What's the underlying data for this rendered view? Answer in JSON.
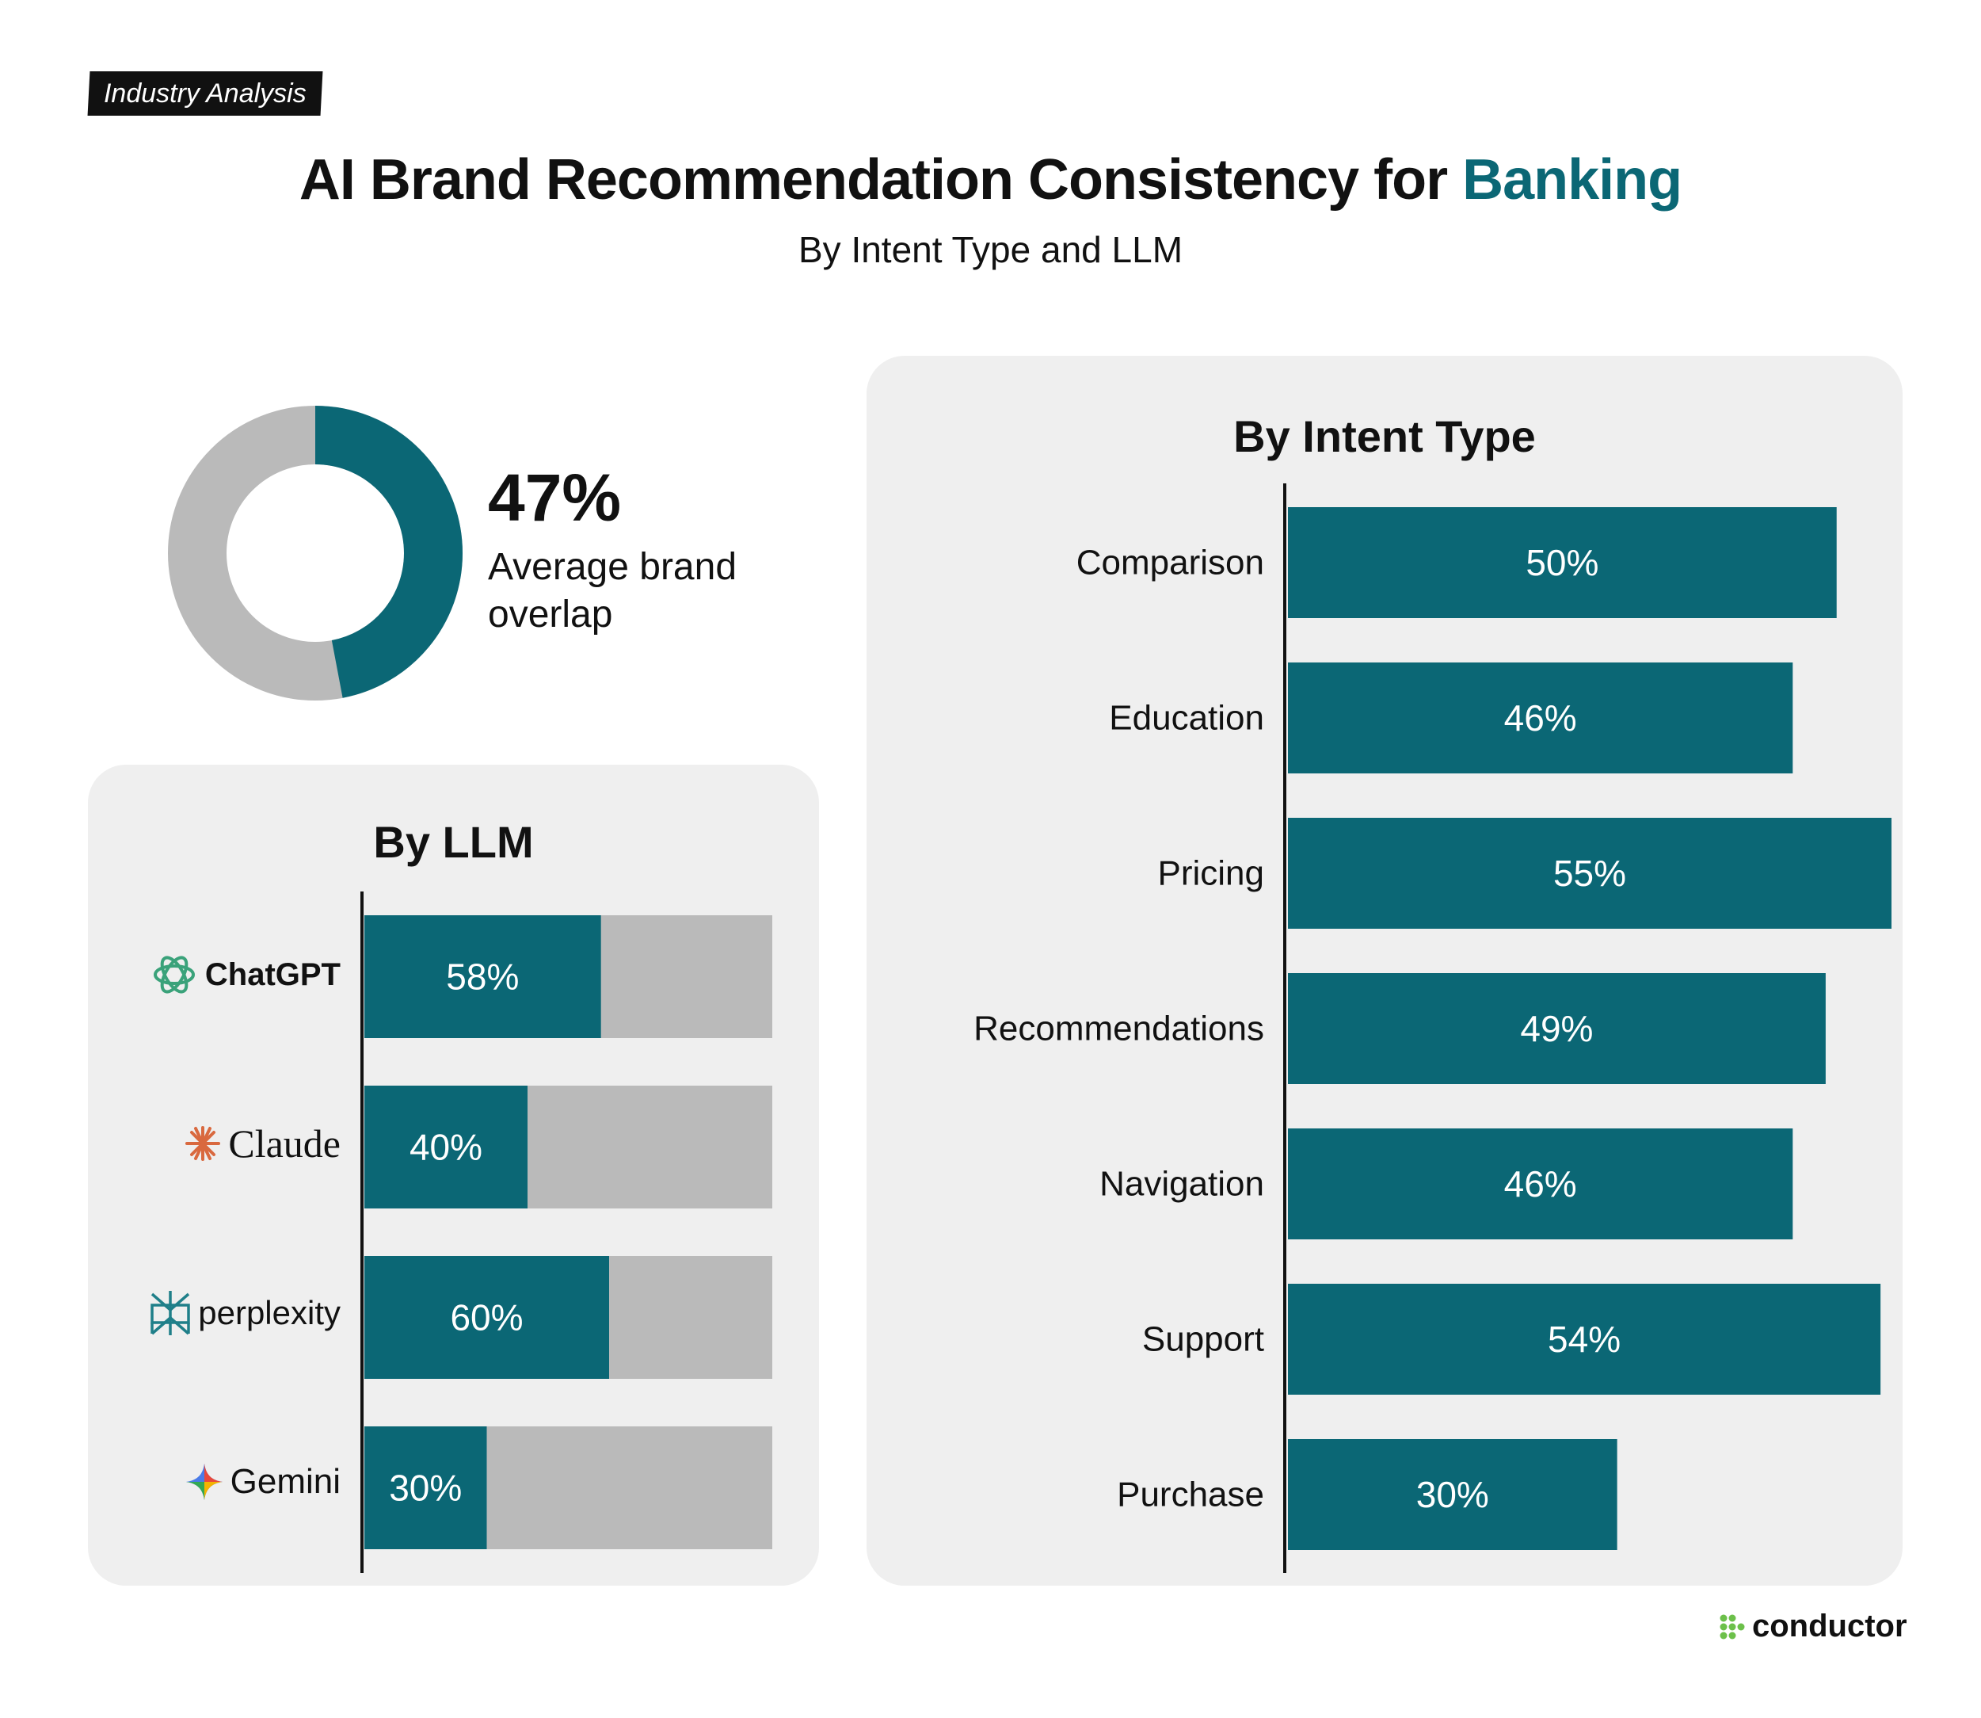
{
  "tag": "Industry Analysis",
  "title": {
    "main": "AI Brand Recommendation Consistency for ",
    "accent": "Banking"
  },
  "subtitle": "By Intent Type and LLM",
  "summary": {
    "value": "47%",
    "label": "Average brand overlap"
  },
  "footer_logo": "conductor",
  "colors": {
    "teal": "#0b6775",
    "gray_track": "#bababa",
    "panel_bg": "#efefef",
    "green_logo": "#6cc04a"
  },
  "chart_data": [
    {
      "type": "pie",
      "title": "",
      "categories": [
        "Overlap",
        "Other"
      ],
      "values": [
        47,
        53
      ],
      "data_labels": [
        "47%"
      ]
    },
    {
      "type": "bar",
      "orientation": "horizontal",
      "title": "By LLM",
      "categories": [
        "ChatGPT",
        "Claude",
        "perplexity",
        "Gemini"
      ],
      "values": [
        58,
        40,
        60,
        30
      ],
      "data_labels": [
        "58%",
        "40%",
        "60%",
        "30%"
      ],
      "xlim": [
        0,
        100
      ],
      "grid": false
    },
    {
      "type": "bar",
      "orientation": "horizontal",
      "title": "By Intent Type",
      "categories": [
        "Comparison",
        "Education",
        "Pricing",
        "Recommendations",
        "Navigation",
        "Support",
        "Purchase"
      ],
      "values": [
        50,
        46,
        55,
        49,
        46,
        54,
        30
      ],
      "data_labels": [
        "50%",
        "46%",
        "55%",
        "49%",
        "46%",
        "54%",
        "30%"
      ],
      "xlim": [
        0,
        55
      ],
      "grid": false
    }
  ]
}
